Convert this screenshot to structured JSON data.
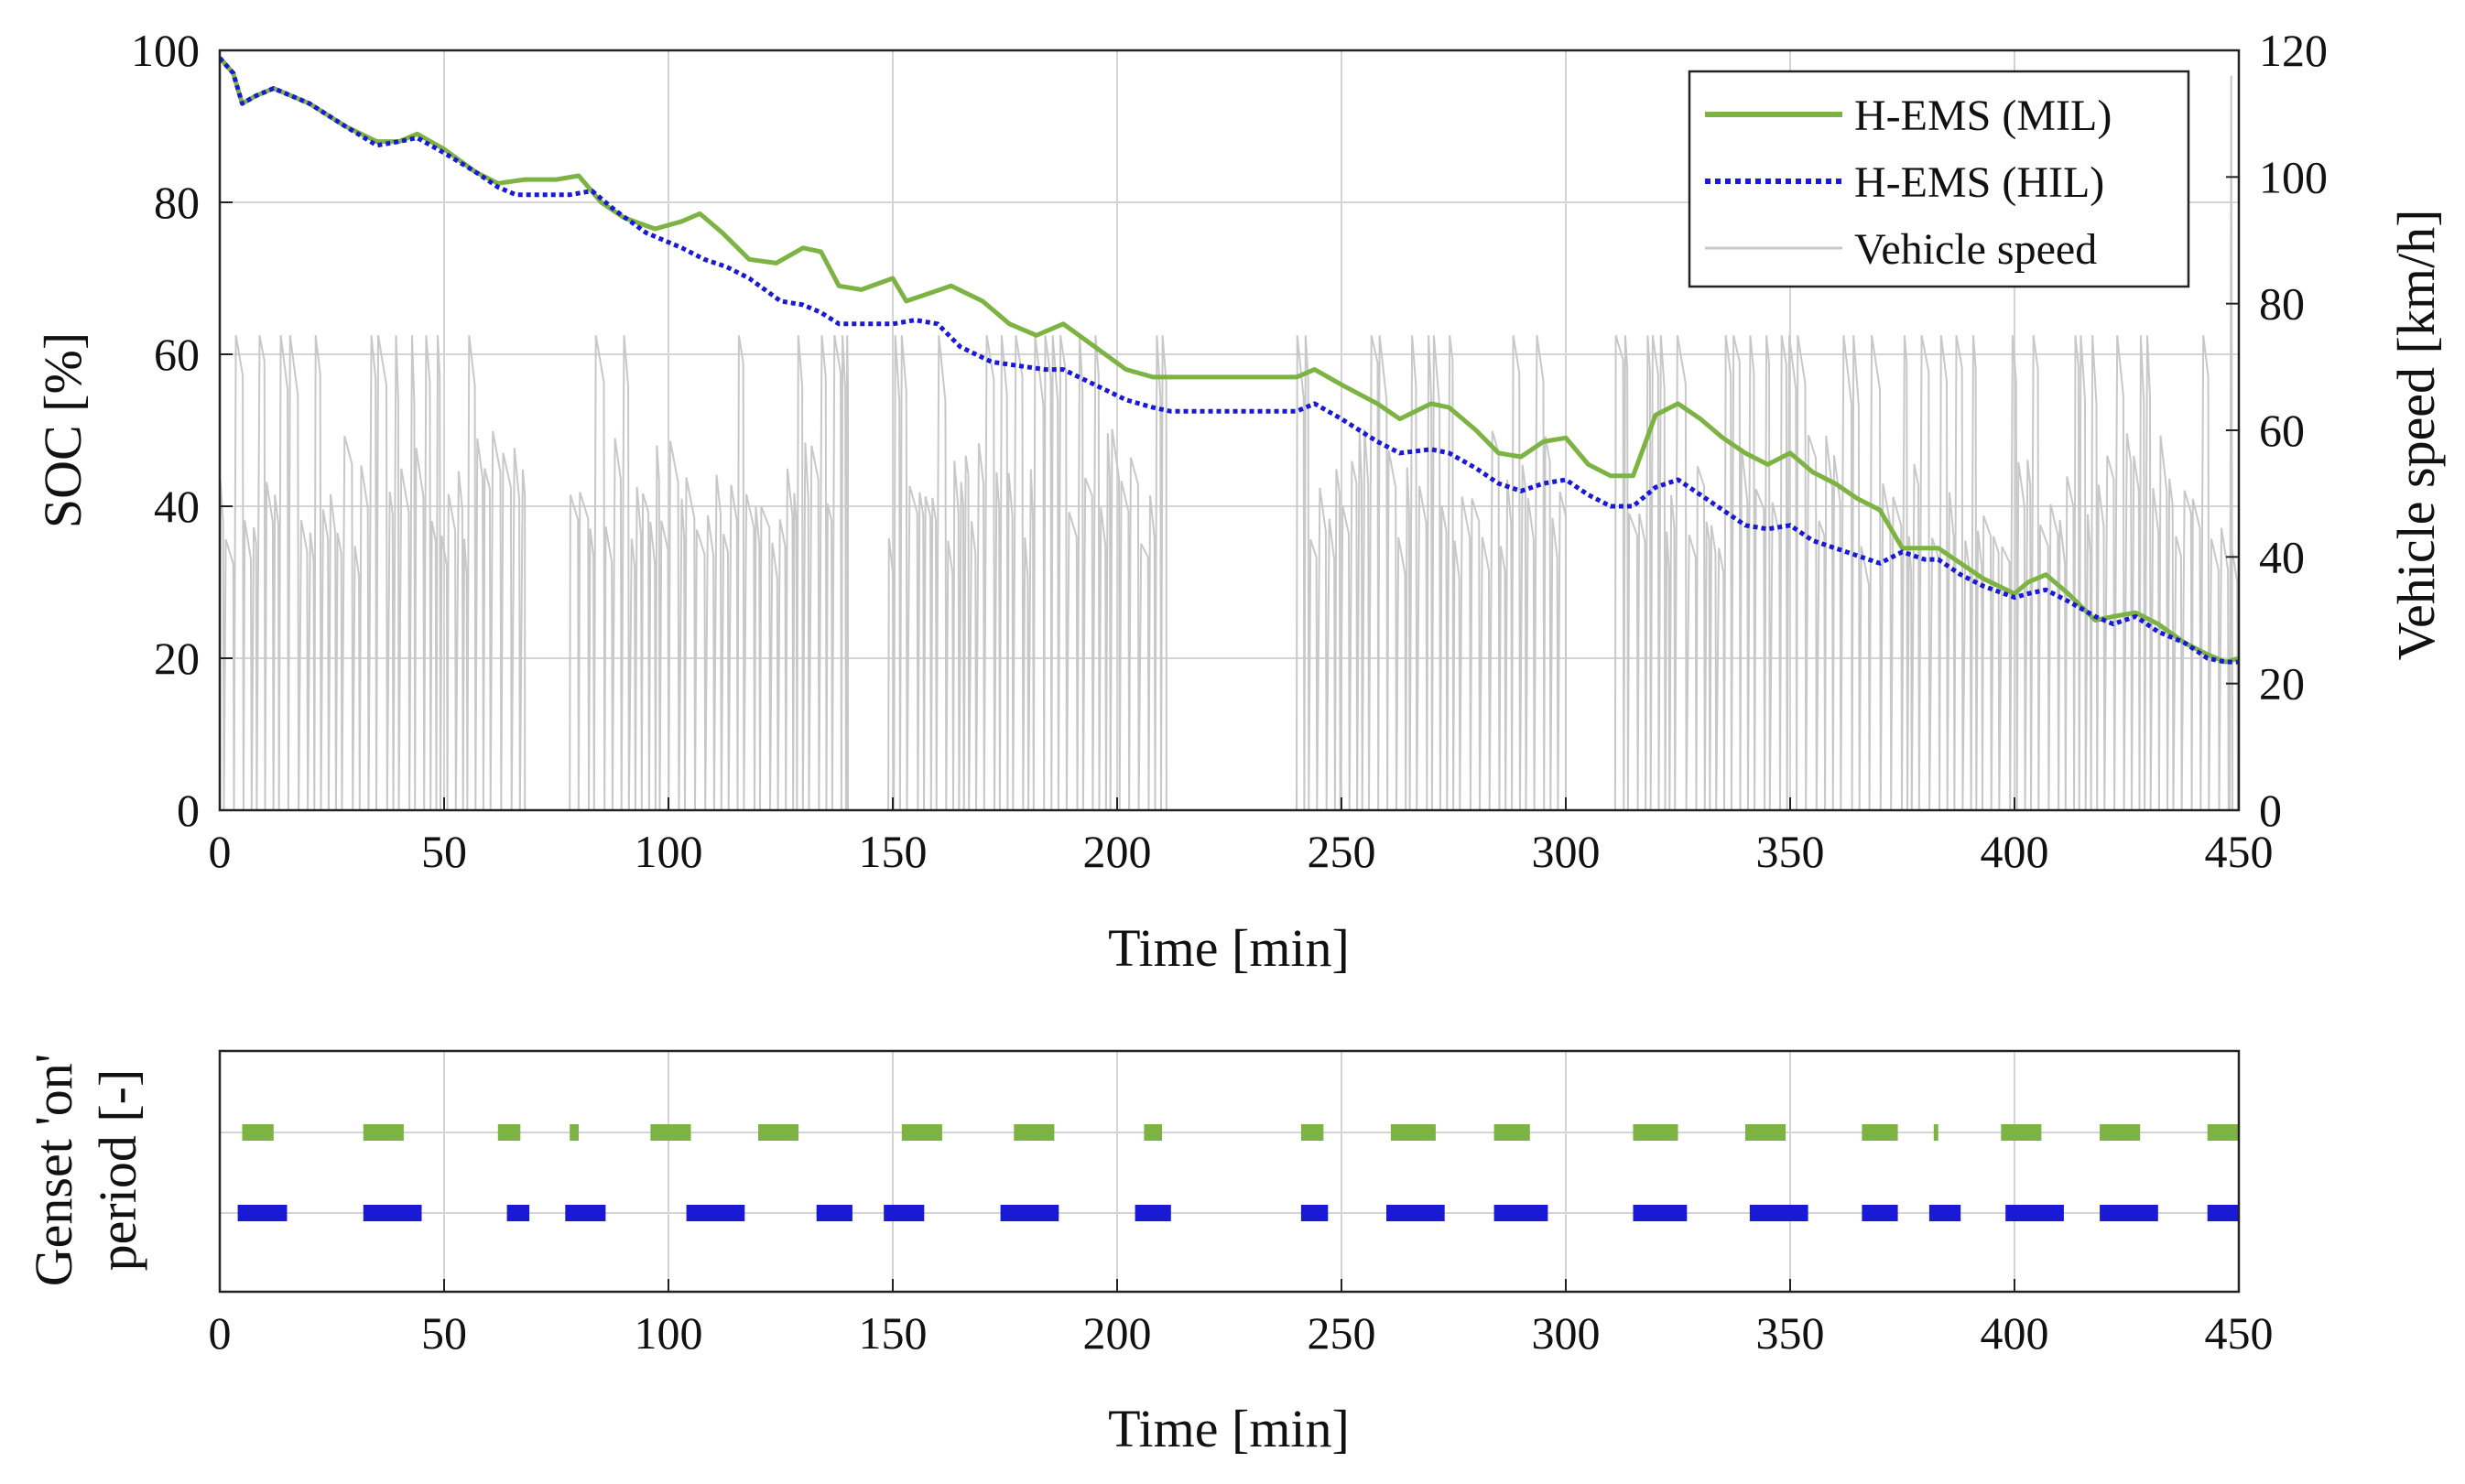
{
  "chart_data": [
    {
      "id": "soc-panel",
      "type": "line",
      "xlabel": "Time [min]",
      "ylabel": "SOC [%]",
      "y2label": "Vehicle speed [km/h]",
      "xlim": [
        0,
        450
      ],
      "ylim": [
        0,
        100
      ],
      "y2lim": [
        0,
        120
      ],
      "xticks": [
        0,
        50,
        100,
        150,
        200,
        250,
        300,
        350,
        400,
        450
      ],
      "yticks": [
        0,
        20,
        40,
        60,
        80,
        100
      ],
      "y2ticks": [
        0,
        20,
        40,
        60,
        80,
        100,
        120
      ],
      "grid": true,
      "legend": {
        "position": "top-right",
        "entries": [
          "H-EMS (MIL)",
          "H-EMS (HIL)",
          "Vehicle speed"
        ]
      },
      "series": [
        {
          "name": "H-EMS (MIL)",
          "color": "#7cb342",
          "style": "solid",
          "x": [
            0,
            3,
            5,
            8,
            12,
            20,
            28,
            35,
            40,
            44,
            50,
            57,
            62,
            68,
            75,
            80,
            85,
            90,
            97,
            103,
            107,
            112,
            118,
            124,
            130,
            134,
            138,
            143,
            150,
            153,
            158,
            163,
            170,
            176,
            182,
            188,
            195,
            202,
            208,
            212,
            220,
            230,
            240,
            244,
            250,
            258,
            263,
            270,
            274,
            280,
            285,
            290,
            295,
            300,
            305,
            310,
            315,
            320,
            325,
            330,
            335,
            340,
            345,
            350,
            355,
            360,
            365,
            370,
            375,
            380,
            383,
            388,
            393,
            400,
            403,
            407,
            412,
            418,
            422,
            427,
            432,
            438,
            443,
            447,
            450
          ],
          "y": [
            99,
            97,
            93,
            94,
            95,
            93,
            90,
            88,
            88,
            89,
            87,
            84,
            82.5,
            83,
            83,
            83.5,
            80,
            78,
            76.5,
            77.5,
            78.5,
            76,
            72.5,
            72,
            74,
            73.5,
            69,
            68.5,
            70,
            67,
            68,
            69,
            67,
            64,
            62.5,
            64,
            61,
            58,
            57,
            57,
            57,
            57,
            57,
            58,
            56,
            53.5,
            51.5,
            53.5,
            53,
            50,
            47,
            46.5,
            48.5,
            49,
            45.5,
            44,
            44,
            52,
            53.5,
            51.5,
            49,
            47,
            45.5,
            47,
            44.5,
            43,
            41,
            39.5,
            34.5,
            34.5,
            34.5,
            32.5,
            30.5,
            28.5,
            30,
            31,
            28.5,
            25,
            25.5,
            26,
            24.5,
            22,
            20.5,
            19.5,
            20
          ],
          "_note": "series values are approximate readings from the figure"
        },
        {
          "name": "H-EMS (HIL)",
          "color": "#1a1ad6",
          "style": "dotted",
          "x": [
            0,
            3,
            5,
            8,
            12,
            20,
            28,
            35,
            40,
            44,
            50,
            57,
            62,
            66,
            72,
            78,
            83,
            88,
            95,
            103,
            108,
            113,
            118,
            125,
            130,
            134,
            138,
            143,
            150,
            155,
            160,
            165,
            172,
            178,
            184,
            188,
            195,
            202,
            208,
            212,
            220,
            230,
            240,
            244,
            250,
            258,
            263,
            270,
            274,
            280,
            285,
            290,
            295,
            300,
            305,
            310,
            315,
            320,
            325,
            330,
            335,
            340,
            345,
            350,
            355,
            360,
            365,
            370,
            375,
            380,
            383,
            388,
            393,
            400,
            403,
            407,
            412,
            418,
            422,
            427,
            432,
            438,
            443,
            447,
            450
          ],
          "y": [
            99,
            97,
            93,
            94,
            95,
            93,
            90,
            87.5,
            88,
            88.5,
            86.5,
            84,
            82,
            81,
            81,
            81,
            81.5,
            79,
            76,
            74,
            72.5,
            71.5,
            70,
            67,
            66.5,
            65.5,
            64,
            64,
            64,
            64.5,
            64,
            61,
            59,
            58.5,
            58,
            58,
            56,
            54,
            53,
            52.5,
            52.5,
            52.5,
            52.5,
            53.5,
            51.5,
            48.5,
            47,
            47.5,
            47,
            45,
            43,
            42,
            43,
            43.5,
            41.5,
            40,
            40,
            42.5,
            43.5,
            41.5,
            39.5,
            37.5,
            37,
            37.5,
            35.5,
            34.5,
            33.5,
            32.5,
            34,
            33,
            33,
            31,
            29.5,
            28,
            28.5,
            29,
            27.5,
            25.5,
            24.5,
            25.5,
            23.5,
            22,
            20,
            19.5,
            19.5
          ],
          "_note": "series values are approximate readings from the figure"
        },
        {
          "name": "Vehicle speed",
          "color": "#c8c8c8",
          "style": "solid",
          "axis": "right",
          "active_intervals": [
            [
              0,
              68
            ],
            [
              78,
              140
            ],
            [
              149,
              211
            ],
            [
              240,
              300
            ],
            [
              311,
              450
            ]
          ],
          "peak_speed": 75,
          "cruise_speed": 55
        }
      ]
    },
    {
      "id": "genset-panel",
      "type": "bar",
      "xlabel": "Time [min]",
      "ylabel": "Genset 'on' period [-]",
      "xlim": [
        0,
        450
      ],
      "xticks": [
        0,
        50,
        100,
        150,
        200,
        250,
        300,
        350,
        400,
        450
      ],
      "grid": true,
      "series": [
        {
          "name": "H-EMS (MIL)",
          "color": "#7cb342",
          "intervals": [
            [
              5,
              12
            ],
            [
              32,
              41
            ],
            [
              62,
              67
            ],
            [
              78,
              80
            ],
            [
              96,
              105
            ],
            [
              120,
              129
            ],
            [
              152,
              161
            ],
            [
              177,
              186
            ],
            [
              206,
              210
            ],
            [
              241,
              246
            ],
            [
              261,
              271
            ],
            [
              284,
              292
            ],
            [
              315,
              325
            ],
            [
              340,
              349
            ],
            [
              366,
              374
            ],
            [
              382,
              383
            ],
            [
              397,
              406
            ],
            [
              419,
              428
            ],
            [
              443,
              452
            ]
          ]
        },
        {
          "name": "H-EMS (HIL)",
          "color": "#1a1ad6",
          "intervals": [
            [
              4,
              15
            ],
            [
              32,
              45
            ],
            [
              64,
              69
            ],
            [
              77,
              86
            ],
            [
              104,
              117
            ],
            [
              133,
              141
            ],
            [
              148,
              157
            ],
            [
              174,
              187
            ],
            [
              204,
              212
            ],
            [
              241,
              247
            ],
            [
              260,
              273
            ],
            [
              284,
              296
            ],
            [
              315,
              327
            ],
            [
              341,
              354
            ],
            [
              366,
              374
            ],
            [
              381,
              388
            ],
            [
              398,
              411
            ],
            [
              419,
              432
            ],
            [
              443,
              452
            ]
          ]
        }
      ]
    }
  ]
}
